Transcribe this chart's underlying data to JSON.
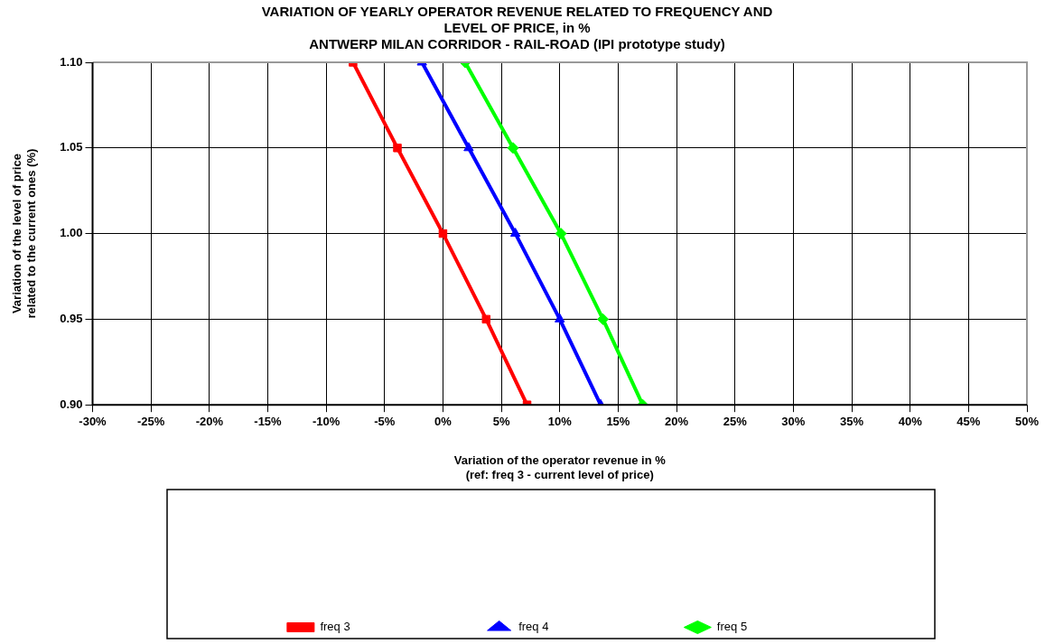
{
  "chart_data": {
    "type": "line",
    "title": "VARIATION OF YEARLY OPERATOR REVENUE RELATED TO FREQUENCY AND\nLEVEL OF PRICE, in %\nANTWERP MILAN CORRIDOR - RAIL-ROAD (IPI prototype study)",
    "xlabel": "Variation of the operator revenue in %\n(ref: freq 3 - current level of price)",
    "ylabel": "Variation of the level of price\nrelated to the current ones (%)",
    "series": [
      {
        "name": "freq 3",
        "color": "#ff0000",
        "marker": "square",
        "x": [
          -7.7,
          -3.9,
          0,
          3.7,
          7.2
        ],
        "values": [
          1.1,
          1.05,
          1.0,
          0.95,
          0.9
        ]
      },
      {
        "name": "freq 4",
        "color": "#0000ff",
        "marker": "triangle",
        "x": [
          -1.8,
          2.2,
          6.2,
          10.0,
          13.5
        ],
        "values": [
          1.1,
          1.05,
          1.0,
          0.95,
          0.9
        ]
      },
      {
        "name": "freq 5",
        "color": "#00ff00",
        "marker": "diamond",
        "x": [
          1.9,
          6.0,
          10.1,
          13.7,
          17.1
        ],
        "values": [
          1.1,
          1.05,
          1.0,
          0.95,
          0.9
        ]
      }
    ],
    "xlim": [
      -30,
      50
    ],
    "xticks": [
      {
        "value": -30,
        "label": "-30%"
      },
      {
        "value": -25,
        "label": "-25%"
      },
      {
        "value": -20,
        "label": "-20%"
      },
      {
        "value": -15,
        "label": "-15%"
      },
      {
        "value": -10,
        "label": "-10%"
      },
      {
        "value": -5,
        "label": "-5%"
      },
      {
        "value": 0,
        "label": "0%"
      },
      {
        "value": 5,
        "label": "5%"
      },
      {
        "value": 10,
        "label": "10%"
      },
      {
        "value": 15,
        "label": "15%"
      },
      {
        "value": 20,
        "label": "20%"
      },
      {
        "value": 25,
        "label": "25%"
      },
      {
        "value": 30,
        "label": "30%"
      },
      {
        "value": 35,
        "label": "35%"
      },
      {
        "value": 40,
        "label": "40%"
      },
      {
        "value": 45,
        "label": "45%"
      },
      {
        "value": 50,
        "label": "50%"
      }
    ],
    "ylim": [
      0.9,
      1.1
    ],
    "yticks": [
      {
        "value": 0.9,
        "label": "0.90"
      },
      {
        "value": 0.95,
        "label": "0.95"
      },
      {
        "value": 1.0,
        "label": "1.00"
      },
      {
        "value": 1.05,
        "label": "1.05"
      },
      {
        "value": 1.1,
        "label": "1.10"
      }
    ],
    "grid": true,
    "legend": "bottom"
  }
}
